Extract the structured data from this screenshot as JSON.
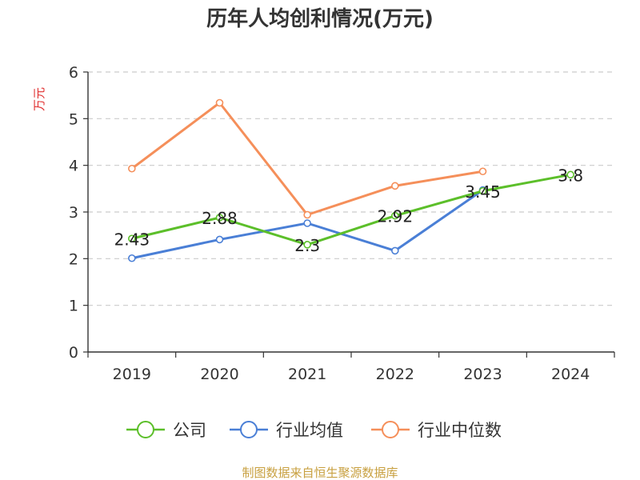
{
  "chart_data": {
    "type": "line",
    "title": "历年人均创利情况(万元)",
    "ylabel": "万元",
    "xlabel": "",
    "categories": [
      "2019",
      "2020",
      "2021",
      "2022",
      "2023",
      "2024"
    ],
    "ylim": [
      0,
      6
    ],
    "yticks": [
      0,
      1,
      2,
      3,
      4,
      5,
      6
    ],
    "grid": "horizontal dashed",
    "legend_position": "bottom",
    "series": [
      {
        "name": "公司",
        "color": "#5cbf2a",
        "values": [
          2.43,
          2.88,
          2.3,
          2.92,
          3.45,
          3.8
        ],
        "labels": [
          "2.43",
          "2.88",
          "2.3",
          "2.92",
          "3.45",
          "3.8"
        ]
      },
      {
        "name": "行业均值",
        "color": "#4a7fd6",
        "values": [
          2.01,
          2.41,
          2.76,
          2.17,
          3.47,
          null
        ]
      },
      {
        "name": "行业中位数",
        "color": "#f58f5a",
        "values": [
          3.93,
          5.34,
          2.94,
          3.56,
          3.87,
          null
        ]
      }
    ]
  },
  "source_text": "制图数据来自恒生聚源数据库"
}
